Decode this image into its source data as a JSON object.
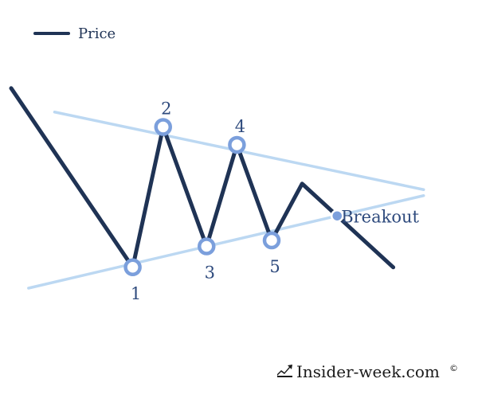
{
  "chart_data": {
    "type": "line",
    "title": "",
    "xlabel": "",
    "ylabel": "",
    "legend": {
      "position": "top-left",
      "entries": [
        "Price"
      ]
    },
    "xlim": [
      0,
      100
    ],
    "ylim": [
      0,
      100
    ],
    "grid": false,
    "series": [
      {
        "name": "Price",
        "x": [
          0,
          28,
          35,
          45,
          52,
          60,
          67,
          88
        ],
        "y": [
          91,
          31,
          78,
          38,
          72,
          40,
          59,
          31
        ]
      }
    ],
    "trendlines": [
      {
        "role": "upper",
        "x": [
          10,
          95
        ],
        "y": [
          83,
          57
        ]
      },
      {
        "role": "lower",
        "x": [
          4,
          95
        ],
        "y": [
          24,
          55
        ]
      }
    ],
    "labeled_points": [
      {
        "label": "1",
        "x": 28,
        "y": 31,
        "label_pos": "below"
      },
      {
        "label": "2",
        "x": 35,
        "y": 78,
        "label_pos": "above"
      },
      {
        "label": "3",
        "x": 45,
        "y": 38,
        "label_pos": "below"
      },
      {
        "label": "4",
        "x": 52,
        "y": 72,
        "label_pos": "above"
      },
      {
        "label": "5",
        "x": 60,
        "y": 40,
        "label_pos": "below"
      }
    ],
    "annotations": [
      {
        "text": "Breakout",
        "x": 76,
        "y": 46
      }
    ],
    "colors": {
      "price": "#1f3355",
      "trendline": "#bcd8f2",
      "marker_stroke": "#7b9fdc",
      "marker_fill": "#ffffff",
      "label": "#2e4a7d"
    }
  },
  "brand": {
    "text": "Insider-week.com",
    "mark": "©",
    "icon": "chart-trend-icon"
  }
}
